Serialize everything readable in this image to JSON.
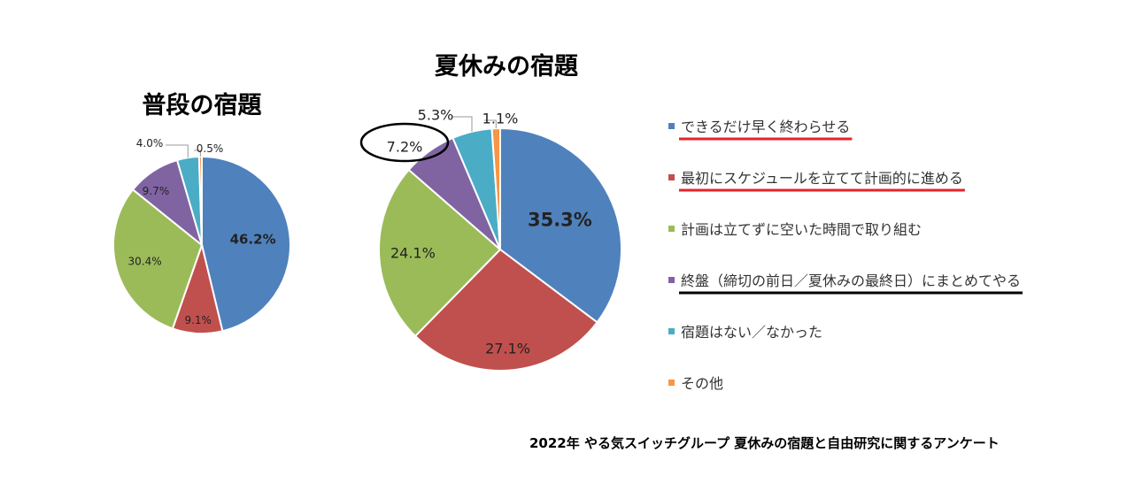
{
  "chart_data": [
    {
      "type": "pie",
      "title": "普段の宿題",
      "slices": [
        {
          "label": "できるだけ早く終わらせる",
          "value": 46.2,
          "text": "46.2%",
          "color": "#4f81bd"
        },
        {
          "label": "最初にスケジュールを立てて計画的に進める",
          "value": 9.1,
          "text": "9.1%",
          "color": "#c0504d"
        },
        {
          "label": "計画は立てずに空いた時間で取り組む",
          "value": 30.4,
          "text": "30.4%",
          "color": "#9bbb59"
        },
        {
          "label": "終盤（締切の前日／夏休みの最終日）にまとめてやる",
          "value": 9.7,
          "text": "9.7%",
          "color": "#8064a2"
        },
        {
          "label": "宿題はない／なかった",
          "value": 4.0,
          "text": "4.0%",
          "color": "#4bacc6"
        },
        {
          "label": "その他",
          "value": 0.5,
          "text": "0.5%",
          "color": "#f79646"
        }
      ]
    },
    {
      "type": "pie",
      "title": "夏休みの宿題",
      "slices": [
        {
          "label": "できるだけ早く終わらせる",
          "value": 35.3,
          "text": "35.3%",
          "color": "#4f81bd"
        },
        {
          "label": "最初にスケジュールを立てて計画的に進める",
          "value": 27.1,
          "text": "27.1%",
          "color": "#c0504d"
        },
        {
          "label": "計画は立てずに空いた時間で取り組む",
          "value": 24.1,
          "text": "24.1%",
          "color": "#9bbb59"
        },
        {
          "label": "終盤（締切の前日／夏休みの最終日）にまとめてやる",
          "value": 7.2,
          "text": "7.2%",
          "color": "#8064a2"
        },
        {
          "label": "宿題はない／なかった",
          "value": 5.3,
          "text": "5.3%",
          "color": "#4bacc6"
        },
        {
          "label": "その他",
          "value": 1.1,
          "text": "1.1%",
          "color": "#f79646"
        }
      ]
    }
  ],
  "legend": [
    {
      "label": "できるだけ早く終わらせる",
      "color": "#4f81bd",
      "underline": "#e3242b"
    },
    {
      "label": "最初にスケジュールを立てて計画的に進める",
      "color": "#c0504d",
      "underline": "#e3242b"
    },
    {
      "label": "計画は立てずに空いた時間で取り組む",
      "color": "#9bbb59",
      "underline": ""
    },
    {
      "label": "終盤（締切の前日／夏休みの最終日）にまとめてやる",
      "color": "#8064a2",
      "underline": "#000000"
    },
    {
      "label": "宿題はない／なかった",
      "color": "#4bacc6",
      "underline": ""
    },
    {
      "label": "その他",
      "color": "#f79646",
      "underline": ""
    }
  ],
  "source": "2022年 やる気スイッチグループ 夏休みの宿題と自由研究に関するアンケート"
}
